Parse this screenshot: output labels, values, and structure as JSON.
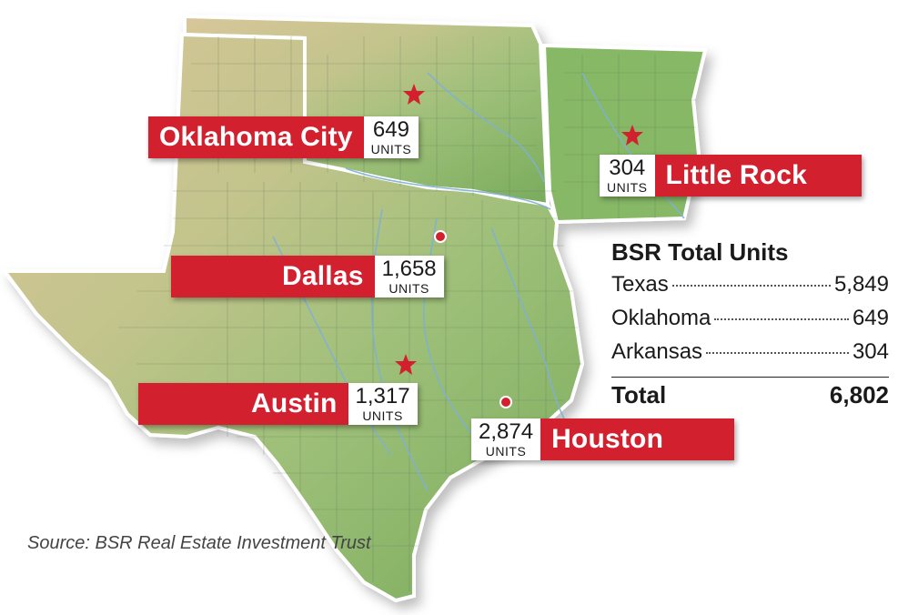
{
  "colors": {
    "label_red": "#d3202f",
    "land_green": "#8cb86a",
    "land_tan": "#d8c69a",
    "river_blue": "#7fb0d6",
    "county_line": "#5d6f60",
    "star_red": "#d3202f"
  },
  "icons": {
    "capital": "star-icon",
    "city": "city-dot-icon"
  },
  "cities": [
    {
      "name": "Oklahoma City",
      "units": "649",
      "units_label": "UNITS",
      "marker": "star"
    },
    {
      "name": "Little Rock",
      "units": "304",
      "units_label": "UNITS",
      "marker": "star"
    },
    {
      "name": "Dallas",
      "units": "1,658",
      "units_label": "UNITS",
      "marker": "dot"
    },
    {
      "name": "Austin",
      "units": "1,317",
      "units_label": "UNITS",
      "marker": "star"
    },
    {
      "name": "Houston",
      "units": "2,874",
      "units_label": "UNITS",
      "marker": "dot"
    }
  ],
  "totals": {
    "title": "BSR Total Units",
    "rows": [
      {
        "state": "Texas",
        "value": "5,849"
      },
      {
        "state": "Oklahoma",
        "value": "649"
      },
      {
        "state": "Arkansas",
        "value": "304"
      }
    ],
    "total_label": "Total",
    "total_value": "6,802"
  },
  "source": "Source: BSR Real Estate Investment Trust"
}
